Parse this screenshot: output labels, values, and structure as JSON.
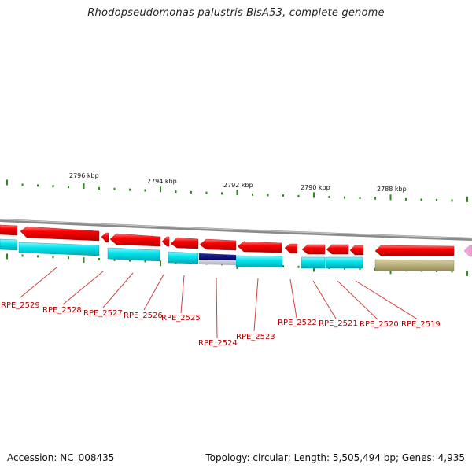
{
  "title": "Rhodopseudomonas palustris BisA53, complete genome",
  "footer": {
    "accession": "Accession: NC_008435",
    "summary": "Topology: circular; Length: 5,505,494 bp; Genes: 4,935"
  },
  "scale_labels": [
    "2796 kbp",
    "2794 kbp",
    "2792 kbp",
    "2790 kbp",
    "2788 kbp"
  ],
  "gene_labels": [
    "RPE_2529",
    "RPE_2528",
    "RPE_2527",
    "RPE_2526",
    "RPE_2525",
    "RPE_2524",
    "RPE_2523",
    "RPE_2522",
    "RPE_2521",
    "RPE_2520",
    "RPE_2519"
  ],
  "colors": {
    "gene": "#ff0000",
    "cds": "#00e5ee",
    "dark_feature": "#00007a",
    "olive_feature": "#b8ad78",
    "backbone": "#888888",
    "tick": "#2a8a1a",
    "label": "#b00000",
    "pink_marker": "#f2a0d8"
  }
}
